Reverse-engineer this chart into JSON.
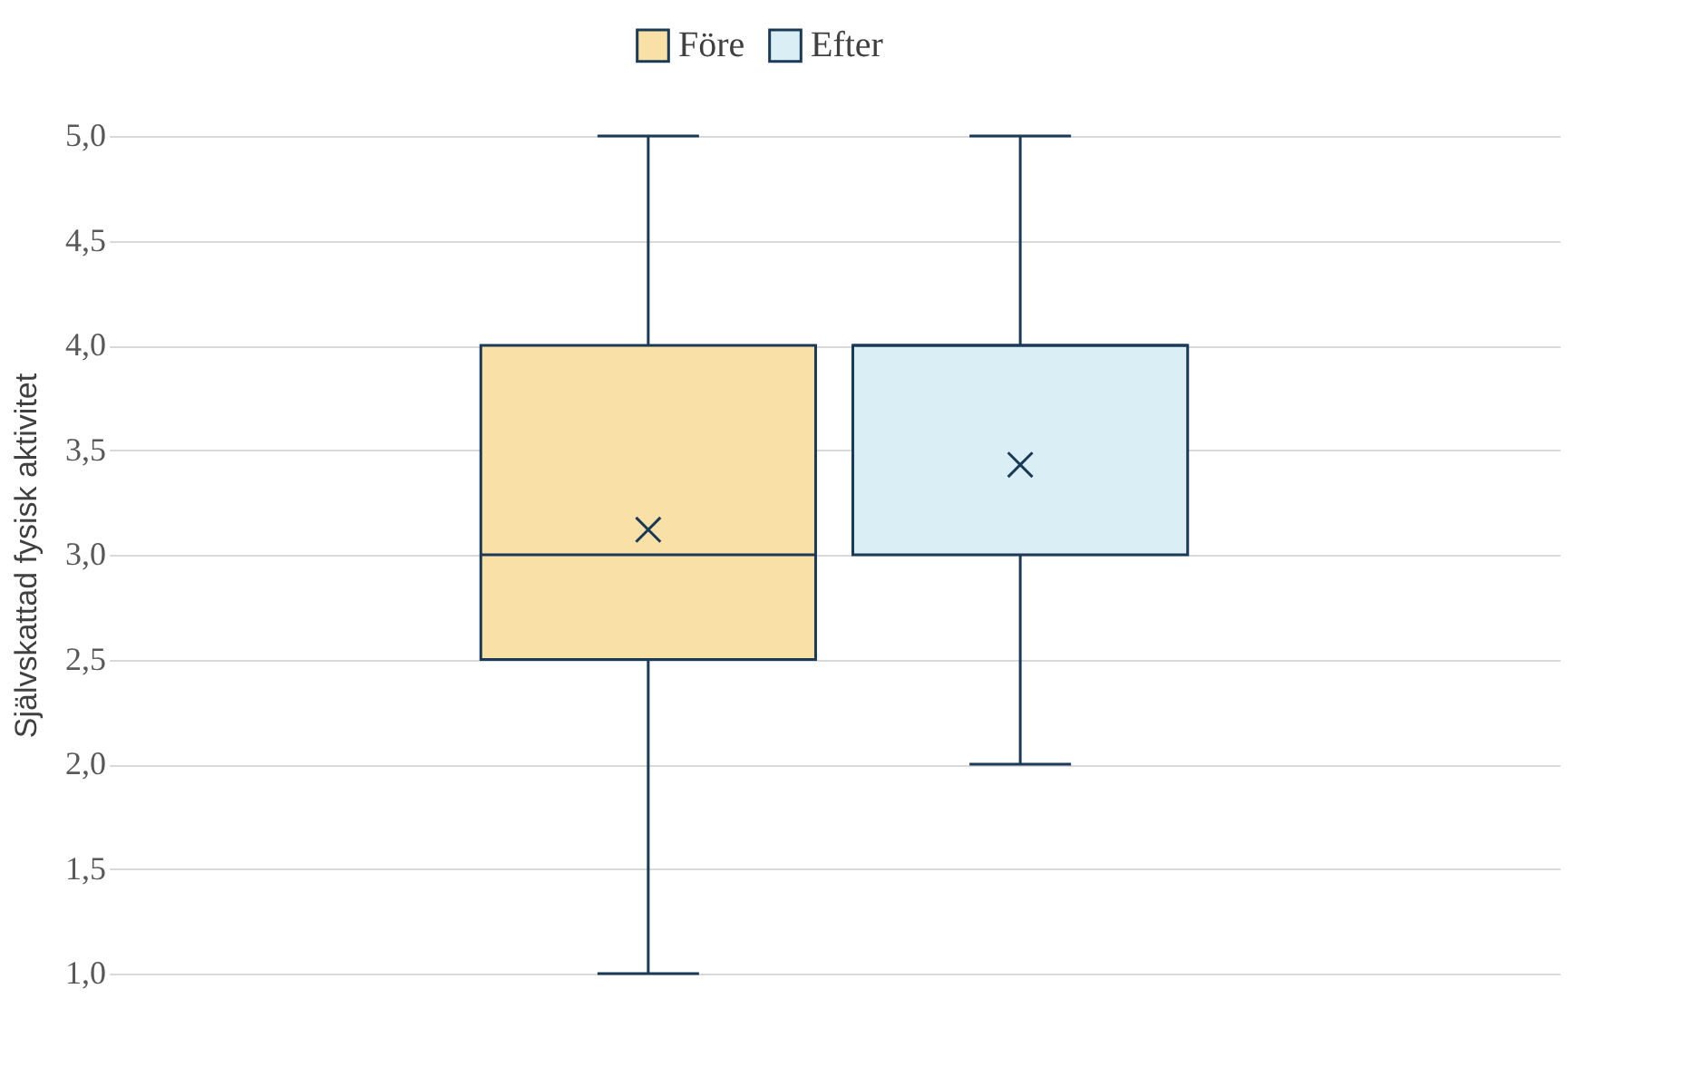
{
  "chart_data": {
    "type": "box",
    "ylabel": "Självskattad fysisk aktivitet",
    "categories": [
      null
    ],
    "series": [
      {
        "name": "Före",
        "color": "#f8e0a6",
        "boxes": [
          {
            "low": 1.0,
            "q1": 2.5,
            "median": 3.0,
            "q3": 4.0,
            "high": 5.0,
            "mean": 3.12
          }
        ]
      },
      {
        "name": "Efter",
        "color": "#daeef6",
        "boxes": [
          {
            "low": 2.0,
            "q1": 3.0,
            "median": 4.0,
            "q3": 4.0,
            "high": 5.0,
            "mean": 3.43
          }
        ]
      }
    ],
    "ylim": [
      1.0,
      5.0
    ],
    "yticks": [
      {
        "value": 1.0,
        "label": "1,0"
      },
      {
        "value": 1.5,
        "label": "1,5"
      },
      {
        "value": 2.0,
        "label": "2,0"
      },
      {
        "value": 2.5,
        "label": "2,5"
      },
      {
        "value": 3.0,
        "label": "3,0"
      },
      {
        "value": 3.5,
        "label": "3,5"
      },
      {
        "value": 4.0,
        "label": "4,0"
      },
      {
        "value": 4.5,
        "label": "4,5"
      },
      {
        "value": 5.0,
        "label": "5,0"
      }
    ],
    "grid": "y",
    "legend": "top",
    "tick_labels": "y",
    "marker": "cross"
  }
}
